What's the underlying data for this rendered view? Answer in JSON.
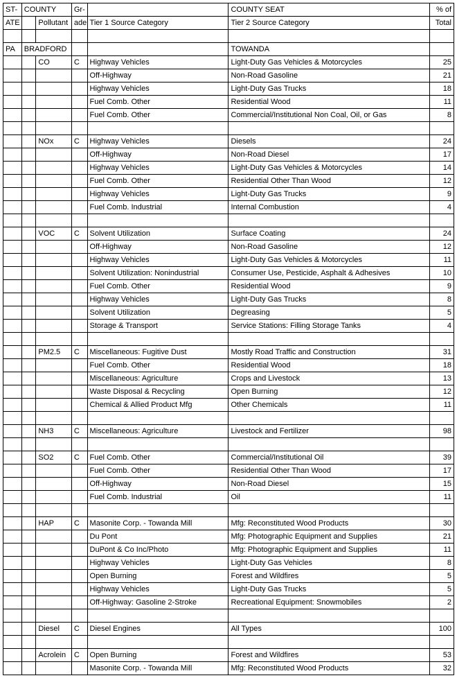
{
  "headers": {
    "state1": "ST-",
    "state2": "ATE",
    "county": "COUNTY",
    "pollutant": "Pollutant",
    "grade1": "Gr-",
    "grade2": "ade",
    "tier1": "Tier 1 Source Category",
    "countyseat": "COUNTY SEAT",
    "tier2": "Tier 2 Source Category",
    "pct1": "% of",
    "pct2": "Total"
  },
  "state": "PA",
  "county": "BRADFORD",
  "countyseat": "TOWANDA",
  "groups": [
    {
      "pollutant": "CO",
      "grade": "C",
      "rows": [
        [
          "Highway Vehicles",
          "Light-Duty Gas Vehicles & Motorcycles",
          25
        ],
        [
          "Off-Highway",
          "Non-Road Gasoline",
          21
        ],
        [
          "Highway Vehicles",
          "Light-Duty Gas Trucks",
          18
        ],
        [
          "Fuel Comb. Other",
          "Residential Wood",
          11
        ],
        [
          "Fuel Comb. Other",
          "Commercial/Institutional Non Coal, Oil, or Gas",
          8
        ]
      ]
    },
    {
      "pollutant": "NOx",
      "grade": "C",
      "rows": [
        [
          "Highway Vehicles",
          "Diesels",
          24
        ],
        [
          "Off-Highway",
          "Non-Road Diesel",
          17
        ],
        [
          "Highway Vehicles",
          "Light-Duty Gas Vehicles & Motorcycles",
          14
        ],
        [
          "Fuel Comb. Other",
          "Residential Other Than Wood",
          12
        ],
        [
          "Highway Vehicles",
          "Light-Duty Gas Trucks",
          9
        ],
        [
          "Fuel Comb. Industrial",
          "Internal Combustion",
          4
        ]
      ]
    },
    {
      "pollutant": "VOC",
      "grade": "C",
      "rows": [
        [
          "Solvent Utilization",
          "Surface Coating",
          24
        ],
        [
          "Off-Highway",
          "Non-Road Gasoline",
          12
        ],
        [
          "Highway Vehicles",
          "Light-Duty Gas Vehicles & Motorcycles",
          11
        ],
        [
          "Solvent Utilization: Nonindustrial",
          "Consumer Use, Pesticide, Asphalt & Adhesives",
          10
        ],
        [
          "Fuel Comb. Other",
          "Residential Wood",
          9
        ],
        [
          "Highway Vehicles",
          "Light-Duty Gas Trucks",
          8
        ],
        [
          "Solvent Utilization",
          "Degreasing",
          5
        ],
        [
          "Storage & Transport",
          "Service Stations: Filling Storage Tanks",
          4
        ]
      ]
    },
    {
      "pollutant": "PM2.5",
      "grade": "C",
      "rows": [
        [
          "Miscellaneous: Fugitive Dust",
          "Mostly Road Traffic and Construction",
          31
        ],
        [
          "Fuel Comb. Other",
          "Residential Wood",
          18
        ],
        [
          "Miscellaneous: Agriculture",
          "Crops and Livestock",
          13
        ],
        [
          "Waste Disposal & Recycling",
          "Open Burning",
          12
        ],
        [
          "Chemical & Allied Product Mfg",
          "Other Chemicals",
          11
        ]
      ]
    },
    {
      "pollutant": "NH3",
      "grade": "C",
      "rows": [
        [
          "Miscellaneous: Agriculture",
          "Livestock and Fertilizer",
          98
        ]
      ]
    },
    {
      "pollutant": "SO2",
      "grade": "C",
      "rows": [
        [
          "Fuel Comb. Other",
          "Commercial/Institutional Oil",
          39
        ],
        [
          "Fuel Comb. Other",
          "Residential Other Than Wood",
          17
        ],
        [
          "Off-Highway",
          "Non-Road Diesel",
          15
        ],
        [
          "Fuel Comb. Industrial",
          "Oil",
          11
        ]
      ]
    },
    {
      "pollutant": "HAP",
      "grade": "C",
      "rows": [
        [
          "Masonite Corp. - Towanda Mill",
          "Mfg: Reconstituted Wood Products",
          30
        ],
        [
          "Du Pont",
          "Mfg: Photographic Equipment and Supplies",
          21
        ],
        [
          "DuPont & Co Inc/Photo",
          "Mfg: Photographic Equipment and Supplies",
          11
        ],
        [
          "Highway Vehicles",
          "Light-Duty Gas Vehicles",
          8
        ],
        [
          "Open Burning",
          "Forest and Wildfires",
          5
        ],
        [
          "Highway Vehicles",
          "Light-Duty Gas Trucks",
          5
        ],
        [
          "Off-Highway: Gasoline 2-Stroke",
          "Recreational Equipment: Snowmobiles",
          2
        ]
      ]
    },
    {
      "pollutant": "Diesel",
      "grade": "C",
      "rows": [
        [
          "Diesel Engines",
          "All Types",
          100
        ]
      ]
    },
    {
      "pollutant": "Acrolein",
      "grade": "C",
      "rows": [
        [
          "Open Burning",
          "Forest and Wildfires",
          53
        ],
        [
          "Masonite Corp. - Towanda Mill",
          "Mfg: Reconstituted Wood Products",
          32
        ]
      ]
    }
  ]
}
